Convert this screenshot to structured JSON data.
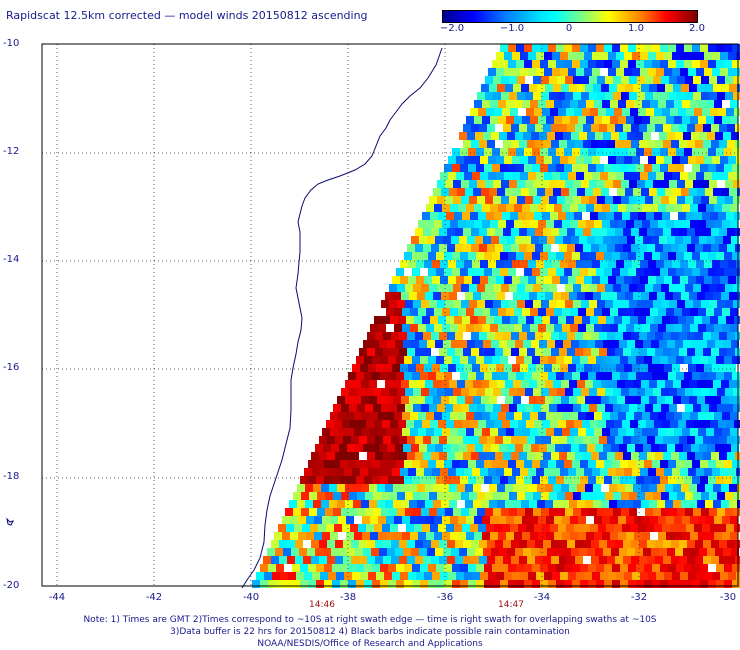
{
  "title": "Rapidscat 12.5km corrected — model winds 20150812 ascending",
  "colorbar": {
    "ticks": [
      "−2.0",
      "−1.0",
      "0",
      "1.0",
      "2.0"
    ],
    "colors": [
      "#00008f",
      "#0000ff",
      "#00ffff",
      "#ffff00",
      "#ff0000",
      "#800000"
    ]
  },
  "lat_labels": [
    "-10",
    "-12",
    "-14",
    "-16",
    "-18",
    "-20"
  ],
  "lon_labels": [
    "-44",
    "-42",
    "-40",
    "-38",
    "-36",
    "-34",
    "-32",
    "-30"
  ],
  "times": [
    "14:46",
    "14:47"
  ],
  "notes": [
    "Note: 1) Times are GMT 2)Times correspond to ~10S at right swath edge — time is right swath for overlapping swaths at ~10S",
    "3)Data buffer is 22 hrs for 20150812 4) Black barbs indicate possible rain contamination",
    "NOAA/NESDIS/Office of Research and Applications"
  ]
}
